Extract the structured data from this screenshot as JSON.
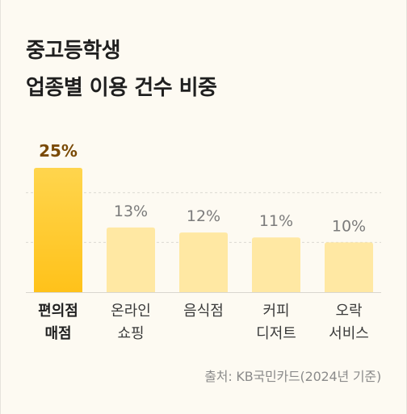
{
  "title_lines": [
    "중고등학생",
    "업종별 이용 건수 비중"
  ],
  "source": "출처: KB국민카드(2024년 기준)",
  "colors": {
    "highlight_bar": "#ffc21a",
    "highlight_bar_light": "#ffd54d",
    "normal_bar": "#ffe8a3",
    "highlight_value": "#7a4a06",
    "normal_value": "#7b7b7b",
    "highlight_label": "#1f1f1f",
    "normal_label": "#3a3a3a",
    "baseline": "#d9d6cf",
    "gridline": "#dcd9d2"
  },
  "chart_data": {
    "type": "bar",
    "categories": [
      [
        "편의점",
        "매점"
      ],
      [
        "온라인",
        "쇼핑"
      ],
      [
        "음식점"
      ],
      [
        "커피",
        "디저트"
      ],
      [
        "오락",
        "서비스"
      ]
    ],
    "values": [
      25,
      13,
      12,
      11,
      10
    ],
    "value_labels": [
      "25%",
      "13%",
      "12%",
      "11%",
      "10%"
    ],
    "highlight_index": 0,
    "ylim": [
      0,
      25
    ],
    "grid": "dashed horizontal"
  }
}
